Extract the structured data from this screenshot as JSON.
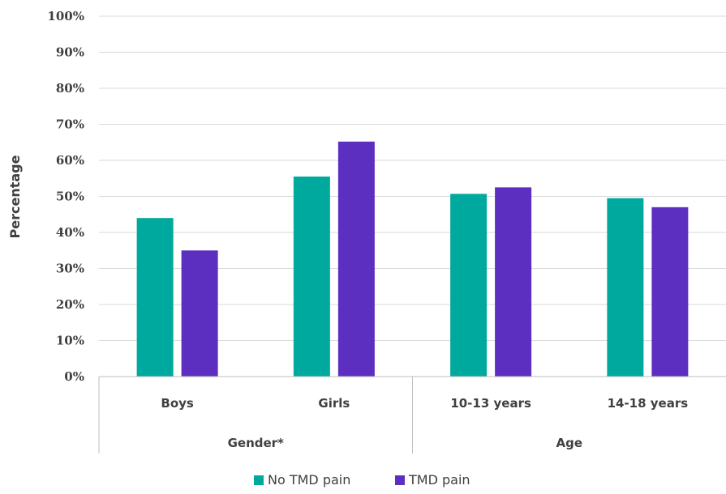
{
  "chart_data": {
    "type": "bar",
    "title": "",
    "ylabel": "Percentage",
    "xlabel": "",
    "ylim": [
      0,
      100
    ],
    "ytick_step": 10,
    "ytick_suffix": "%",
    "grid": true,
    "legend_position": "bottom",
    "categories": [
      "Boys",
      "Girls",
      "10-13 years",
      "14-18 years"
    ],
    "groups": [
      {
        "label": "Gender*",
        "categories": [
          "Boys",
          "Girls"
        ]
      },
      {
        "label": "Age",
        "categories": [
          "10-13 years",
          "14-18 years"
        ]
      }
    ],
    "series": [
      {
        "name": "No TMD pain",
        "color": "#00a99d",
        "values": [
          44,
          55.5,
          50.7,
          49.5
        ]
      },
      {
        "name": "TMD pain",
        "color": "#5d2fc1",
        "values": [
          35,
          65.2,
          52.5,
          47
        ]
      }
    ]
  }
}
